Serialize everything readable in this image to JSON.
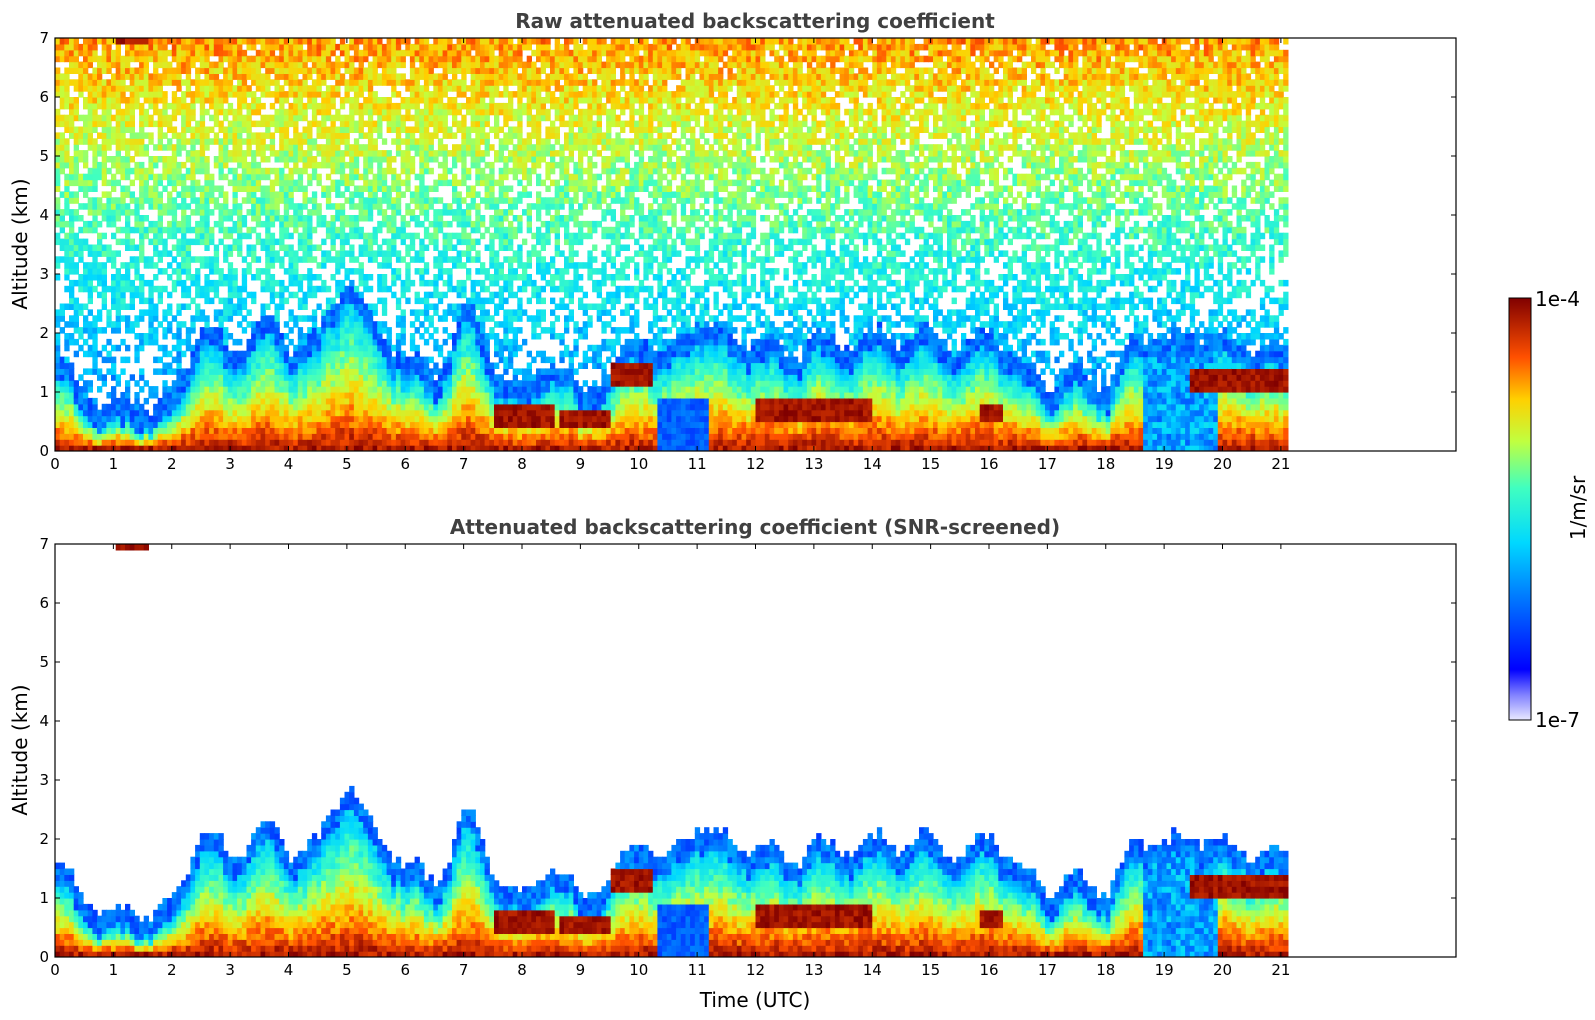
{
  "chart_data": [
    {
      "type": "heatmap",
      "title": "Raw attenuated backscattering coefficient",
      "xlabel": "",
      "ylabel": "Altitude (km)",
      "xlim": [
        0,
        24
      ],
      "ylim": [
        0,
        7
      ],
      "xticks": [
        "0",
        "1",
        "2",
        "3",
        "4",
        "5",
        "6",
        "7",
        "8",
        "9",
        "10",
        "11",
        "12",
        "13",
        "14",
        "15",
        "16",
        "17",
        "18",
        "19",
        "20",
        "21"
      ],
      "yticks": [
        "0",
        "1",
        "2",
        "3",
        "4",
        "5",
        "6",
        "7"
      ],
      "data_end_time": 21.1,
      "screened": false,
      "boundary_layer_top_km": [
        [
          0,
          1.2
        ],
        [
          0.5,
          0.5
        ],
        [
          1,
          0.4
        ],
        [
          1.5,
          0.35
        ],
        [
          2,
          0.5
        ],
        [
          2.5,
          1.8
        ],
        [
          3,
          1.2
        ],
        [
          3.5,
          1.9
        ],
        [
          4,
          1.4
        ],
        [
          4.5,
          1.6
        ],
        [
          5,
          2.6
        ],
        [
          5.5,
          1.6
        ],
        [
          6,
          1.2
        ],
        [
          6.5,
          0.8
        ],
        [
          7,
          2.2
        ],
        [
          7.5,
          1.0
        ],
        [
          8,
          0.6
        ],
        [
          8.5,
          1.2
        ],
        [
          9,
          0.6
        ],
        [
          9.5,
          1.0
        ],
        [
          10,
          1.6
        ],
        [
          10.5,
          1.2
        ],
        [
          11,
          1.9
        ],
        [
          11.5,
          1.5
        ],
        [
          12,
          1.5
        ],
        [
          12.5,
          1.2
        ],
        [
          13,
          1.6
        ],
        [
          13.5,
          1.4
        ],
        [
          14,
          1.6
        ],
        [
          14.5,
          1.5
        ],
        [
          15,
          1.6
        ],
        [
          15.5,
          1.3
        ],
        [
          16,
          1.7
        ],
        [
          16.5,
          1.1
        ],
        [
          17,
          0.8
        ],
        [
          17.5,
          0.9
        ],
        [
          18,
          0.7
        ],
        [
          18.5,
          1.6
        ],
        [
          19,
          1.5
        ],
        [
          19.5,
          1.7
        ],
        [
          20,
          1.5
        ],
        [
          20.5,
          1.4
        ],
        [
          21,
          1.3
        ]
      ],
      "cloud_layers_km": [
        [
          1.0,
          1.6,
          6.8,
          7.4
        ],
        [
          7.5,
          8.5,
          0.4,
          0.7
        ],
        [
          8.6,
          9.5,
          0.4,
          0.6
        ],
        [
          9.5,
          10.2,
          1.0,
          1.5
        ],
        [
          12.0,
          14.0,
          0.5,
          0.8
        ],
        [
          15.8,
          16.2,
          0.5,
          0.7
        ],
        [
          19.4,
          21.1,
          0.9,
          1.3
        ]
      ]
    },
    {
      "type": "heatmap",
      "title": "Attenuated backscattering coefficient (SNR-screened)",
      "xlabel": "Time (UTC)",
      "ylabel": "Altitude (km)",
      "xlim": [
        0,
        24
      ],
      "ylim": [
        0,
        7
      ],
      "xticks": [
        "0",
        "1",
        "2",
        "3",
        "4",
        "5",
        "6",
        "7",
        "8",
        "9",
        "10",
        "11",
        "12",
        "13",
        "14",
        "15",
        "16",
        "17",
        "18",
        "19",
        "20",
        "21"
      ],
      "yticks": [
        "0",
        "1",
        "2",
        "3",
        "4",
        "5",
        "6",
        "7"
      ],
      "data_end_time": 21.1,
      "screened": true
    }
  ],
  "colorbar": {
    "label": "1/m/sr",
    "max_label": "1e-4",
    "min_label": "1e-7",
    "scale": "log",
    "range": [
      1e-07,
      0.0001
    ],
    "colormap": "jet"
  }
}
